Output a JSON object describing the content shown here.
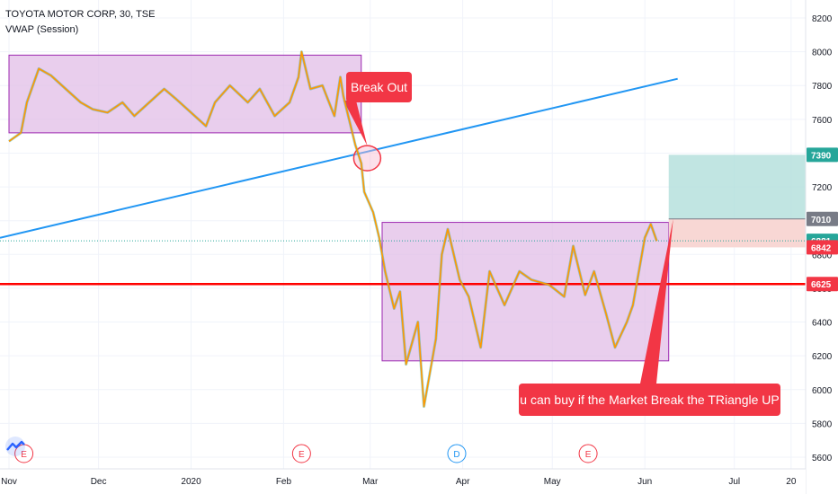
{
  "header": {
    "title": "TOYOTA MOTOR CORP, 30, TSE",
    "indicator": "VWAP (Session)"
  },
  "annotations": {
    "breakout": "Break Out",
    "buy_note": "u can buy if the Market Break the TRiangle UP"
  },
  "events": [
    {
      "label": "E",
      "date": "2019-11-06",
      "color": "#f23645"
    },
    {
      "label": "E",
      "date": "2020-02-07",
      "color": "#f23645"
    },
    {
      "label": "D",
      "date": "2020-03-30",
      "color": "#2196f3"
    },
    {
      "label": "E",
      "date": "2020-05-13",
      "color": "#f23645"
    }
  ],
  "colors": {
    "candle_up": "#26a69a",
    "price_line": "#ff9800",
    "box_fill": "#e1bee7",
    "box_stroke": "#9c27b0",
    "trendline": "#2196f3",
    "support": "#ff0000",
    "target_zone": "#b2dfdb",
    "stop_zone": "#f8d7d4",
    "last_price_line": "#26a69a"
  },
  "chart_data": {
    "type": "line",
    "title": "TOYOTA MOTOR CORP, 30, TSE",
    "x_ticks": [
      "Nov",
      "Dec",
      "2020",
      "Feb",
      "Mar",
      "Apr",
      "May",
      "Jun",
      "Jul",
      "20"
    ],
    "y_ticks": [
      5600,
      5800,
      6000,
      6200,
      6400,
      6600,
      6800,
      7000,
      7200,
      7400,
      7600,
      7800,
      8000,
      8200
    ],
    "ylim": [
      5530,
      8280
    ],
    "price_series": {
      "name": "VWAP (Session)",
      "points": [
        [
          "2019-11-01",
          7470
        ],
        [
          "2019-11-05",
          7520
        ],
        [
          "2019-11-07",
          7700
        ],
        [
          "2019-11-11",
          7900
        ],
        [
          "2019-11-15",
          7860
        ],
        [
          "2019-11-20",
          7780
        ],
        [
          "2019-11-25",
          7700
        ],
        [
          "2019-11-29",
          7660
        ],
        [
          "2019-12-04",
          7640
        ],
        [
          "2019-12-09",
          7700
        ],
        [
          "2019-12-13",
          7620
        ],
        [
          "2019-12-18",
          7700
        ],
        [
          "2019-12-23",
          7780
        ],
        [
          "2019-12-27",
          7720
        ],
        [
          "2020-01-06",
          7560
        ],
        [
          "2020-01-09",
          7700
        ],
        [
          "2020-01-14",
          7800
        ],
        [
          "2020-01-20",
          7700
        ],
        [
          "2020-01-24",
          7780
        ],
        [
          "2020-01-29",
          7620
        ],
        [
          "2020-02-03",
          7700
        ],
        [
          "2020-02-06",
          7850
        ],
        [
          "2020-02-07",
          8000
        ],
        [
          "2020-02-10",
          7780
        ],
        [
          "2020-02-14",
          7800
        ],
        [
          "2020-02-18",
          7620
        ],
        [
          "2020-02-20",
          7850
        ],
        [
          "2020-02-21",
          7740
        ],
        [
          "2020-02-25",
          7450
        ],
        [
          "2020-02-27",
          7340
        ],
        [
          "2020-02-28",
          7170
        ],
        [
          "2020-03-02",
          7050
        ],
        [
          "2020-03-04",
          6900
        ],
        [
          "2020-03-06",
          6700
        ],
        [
          "2020-03-09",
          6480
        ],
        [
          "2020-03-11",
          6580
        ],
        [
          "2020-03-13",
          6150
        ],
        [
          "2020-03-17",
          6400
        ],
        [
          "2020-03-19",
          5900
        ],
        [
          "2020-03-23",
          6300
        ],
        [
          "2020-03-25",
          6800
        ],
        [
          "2020-03-27",
          6950
        ],
        [
          "2020-03-31",
          6650
        ],
        [
          "2020-04-03",
          6550
        ],
        [
          "2020-04-07",
          6250
        ],
        [
          "2020-04-10",
          6700
        ],
        [
          "2020-04-15",
          6500
        ],
        [
          "2020-04-20",
          6700
        ],
        [
          "2020-04-24",
          6650
        ],
        [
          "2020-04-30",
          6620
        ],
        [
          "2020-05-05",
          6550
        ],
        [
          "2020-05-08",
          6850
        ],
        [
          "2020-05-12",
          6560
        ],
        [
          "2020-05-15",
          6700
        ],
        [
          "2020-05-19",
          6450
        ],
        [
          "2020-05-22",
          6250
        ],
        [
          "2020-05-26",
          6400
        ],
        [
          "2020-05-28",
          6500
        ],
        [
          "2020-06-01",
          6900
        ],
        [
          "2020-06-03",
          6980
        ],
        [
          "2020-06-05",
          6880
        ]
      ]
    },
    "rectangles": [
      {
        "name": "range-1",
        "start": "2019-11-01",
        "end": "2020-02-27",
        "low": 7520,
        "high": 7980
      },
      {
        "name": "range-2",
        "start": "2020-03-05",
        "end": "2020-06-09",
        "low": 6170,
        "high": 6990
      }
    ],
    "trendline": {
      "start": [
        "2019-11-01",
        6920
      ],
      "end": [
        "2020-06-12",
        7840
      ]
    },
    "breakout_circle": {
      "date": "2020-02-29",
      "value": 7370
    },
    "support_level": 6625,
    "long_position": {
      "start": "2020-06-09",
      "end": "2020-07-31",
      "entry": 7010,
      "target": 7390,
      "stop": 6842
    },
    "price_labels": [
      {
        "value": 7390,
        "text": "7390",
        "bg": "#26a69a",
        "fg": "#ffffff"
      },
      {
        "value": 7010,
        "text": "7010",
        "bg": "#787b86",
        "fg": "#ffffff"
      },
      {
        "value": 6881,
        "text": "6881",
        "bg": "#26a69a",
        "fg": "#ffffff"
      },
      {
        "value": 6842,
        "text": "6842",
        "bg": "#f23645",
        "fg": "#ffffff"
      },
      {
        "value": 6625,
        "text": "6625",
        "bg": "#f23645",
        "fg": "#ffffff"
      }
    ],
    "last_price": 6881,
    "grid": true
  }
}
